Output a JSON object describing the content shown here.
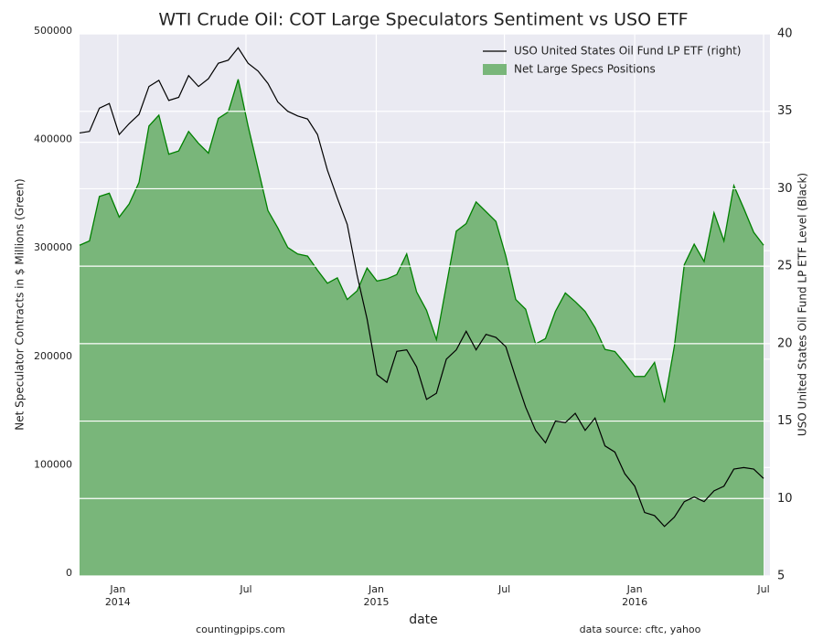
{
  "chart_data": {
    "type": "area-line",
    "title": "WTI Crude Oil: COT Large Speculators Sentiment vs USO ETF",
    "x_label": "date",
    "y_label": "Net Speculator Contracts in $ Millions (Green)",
    "y2_label": "USO United States Oil Fund LP ETF Level (Black)",
    "footer_left": "countingpips.com",
    "footer_right": "data source: cftc, yahoo",
    "legend": "upper right",
    "grid": true,
    "x": [
      "2013-11-08",
      "2013-11-22",
      "2013-12-06",
      "2013-12-20",
      "2014-01-03",
      "2014-01-17",
      "2014-01-31",
      "2014-02-14",
      "2014-02-28",
      "2014-03-14",
      "2014-03-28",
      "2014-04-11",
      "2014-04-25",
      "2014-05-09",
      "2014-05-23",
      "2014-06-06",
      "2014-06-20",
      "2014-07-04",
      "2014-07-18",
      "2014-08-01",
      "2014-08-15",
      "2014-08-29",
      "2014-09-12",
      "2014-09-26",
      "2014-10-10",
      "2014-10-24",
      "2014-11-07",
      "2014-11-21",
      "2014-12-05",
      "2014-12-19",
      "2015-01-02",
      "2015-01-16",
      "2015-01-30",
      "2015-02-13",
      "2015-02-27",
      "2015-03-13",
      "2015-03-27",
      "2015-04-10",
      "2015-04-24",
      "2015-05-08",
      "2015-05-22",
      "2015-06-05",
      "2015-06-19",
      "2015-07-03",
      "2015-07-17",
      "2015-07-31",
      "2015-08-14",
      "2015-08-28",
      "2015-09-11",
      "2015-09-25",
      "2015-10-09",
      "2015-10-23",
      "2015-11-06",
      "2015-11-20",
      "2015-12-04",
      "2015-12-18",
      "2016-01-01",
      "2016-01-15",
      "2016-01-29",
      "2016-02-12",
      "2016-02-26",
      "2016-03-11",
      "2016-03-25",
      "2016-04-08",
      "2016-04-22",
      "2016-05-06",
      "2016-05-20",
      "2016-06-03",
      "2016-06-17",
      "2016-07-01"
    ],
    "xlim": [
      "2013-11-08",
      "2016-07-10"
    ],
    "xticks": [
      {
        "value": "2014-01-01",
        "label": "Jan 2014"
      },
      {
        "value": "2014-07-01",
        "label": "Jul"
      },
      {
        "value": "2015-01-01",
        "label": "Jan 2015"
      },
      {
        "value": "2015-07-01",
        "label": "Jul"
      },
      {
        "value": "2016-01-01",
        "label": "Jan 2016"
      },
      {
        "value": "2016-07-01",
        "label": "Jul"
      }
    ],
    "ylim": [
      0,
      500000
    ],
    "yticks": [
      0,
      100000,
      200000,
      300000,
      400000,
      500000
    ],
    "y2lim": [
      5,
      40
    ],
    "y2ticks": [
      5,
      10,
      15,
      20,
      25,
      30,
      35,
      40
    ],
    "series": [
      {
        "name": "Net Large Specs Positions",
        "kind": "area",
        "color": "#008000",
        "fill": "#79b67a",
        "values": [
          305000,
          309000,
          350000,
          353000,
          331000,
          343000,
          363000,
          415000,
          425000,
          389000,
          392000,
          410000,
          399000,
          390000,
          422000,
          428000,
          458000,
          415000,
          376000,
          337000,
          321000,
          303000,
          297000,
          295000,
          282000,
          270000,
          275000,
          255000,
          263000,
          284000,
          272000,
          274000,
          278000,
          297000,
          262000,
          245000,
          218000,
          268000,
          318000,
          325000,
          345000,
          336000,
          327000,
          295000,
          255000,
          246000,
          214000,
          219000,
          244000,
          261000,
          253000,
          244000,
          229000,
          209000,
          207000,
          196000,
          184000,
          184000,
          197000,
          160000,
          212000,
          287000,
          306000,
          290000,
          335000,
          309000,
          360000,
          339000,
          317000,
          305000
        ]
      },
      {
        "name": "USO United States Oil Fund LP ETF (right)",
        "kind": "line",
        "axis": "y2",
        "color": "#000000",
        "values": [
          33.6,
          33.7,
          35.2,
          35.5,
          33.5,
          34.2,
          34.8,
          36.6,
          37.0,
          35.7,
          35.9,
          37.3,
          36.6,
          37.1,
          38.1,
          38.3,
          39.1,
          38.1,
          37.6,
          36.8,
          35.6,
          35.0,
          34.7,
          34.5,
          33.5,
          31.2,
          29.4,
          27.7,
          24.4,
          21.6,
          18.0,
          17.5,
          19.5,
          19.6,
          18.5,
          16.4,
          16.8,
          19.0,
          19.6,
          20.8,
          19.6,
          20.6,
          20.4,
          19.8,
          17.8,
          15.9,
          14.4,
          13.6,
          15.0,
          14.9,
          15.5,
          14.4,
          15.2,
          13.4,
          13.0,
          11.6,
          10.8,
          9.1,
          8.9,
          8.2,
          8.8,
          9.8,
          10.1,
          9.8,
          10.5,
          10.8,
          11.9,
          12.0,
          11.9,
          11.3
        ]
      }
    ]
  }
}
